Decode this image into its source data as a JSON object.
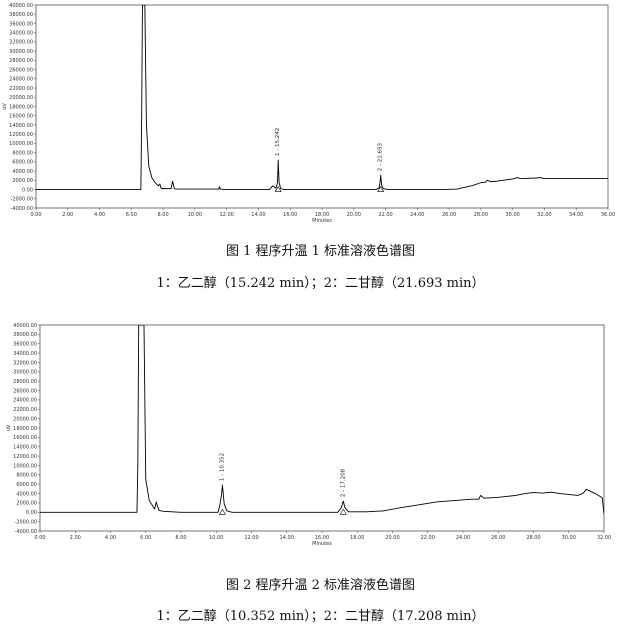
{
  "chart_data": [
    {
      "type": "line",
      "title": "图 1 程序升温 1 标准溶液色谱图",
      "legend_text": "1：乙二醇（15.242 min）；2：二甘醇（21.693 min）",
      "xlabel": "Minutes",
      "ylabel": "uV",
      "xlim": [
        0,
        36
      ],
      "ylim": [
        -4000,
        40000
      ],
      "xticks": [
        "0.00",
        "2.00",
        "4.00",
        "6.00",
        "8.00",
        "10.00",
        "12.00",
        "14.00",
        "16.00",
        "18.00",
        "20.00",
        "22.00",
        "24.00",
        "26.00",
        "28.00",
        "30.00",
        "32.00",
        "34.00",
        "36.00"
      ],
      "yticks": [
        "-4000.00",
        "-2000.00",
        "0.00",
        "2000.00",
        "4000.00",
        "6000.00",
        "8000.00",
        "10000.00",
        "12000.00",
        "14000.00",
        "16000.00",
        "18000.00",
        "20000.00",
        "22000.00",
        "24000.00",
        "26000.00",
        "28000.00",
        "30000.00",
        "32000.00",
        "34000.00",
        "36000.00",
        "38000.00",
        "40000.00"
      ],
      "series": [
        {
          "x": [
            0,
            6.6,
            6.65,
            6.7,
            6.75,
            6.85,
            6.95,
            7.1,
            7.3,
            7.5,
            7.7,
            7.8,
            7.85,
            7.9,
            8.0,
            8.5,
            8.6,
            8.65,
            8.7,
            8.8,
            9.5,
            11.5,
            11.55,
            11.6,
            12,
            14.7,
            14.9,
            15.1,
            15.2,
            15.242,
            15.3,
            15.4,
            15.6,
            16.5,
            18,
            20,
            21.4,
            21.6,
            21.65,
            21.693,
            21.75,
            21.85,
            22.2,
            24,
            25.5,
            26.5,
            27.5,
            28,
            28.3,
            28.4,
            28.6,
            29,
            30,
            30.3,
            30.45,
            30.7,
            31.5,
            31.8,
            31.9,
            32.2,
            34,
            36
          ],
          "y": [
            0,
            0,
            16000,
            40000,
            40000,
            40000,
            14000,
            5000,
            2500,
            1500,
            800,
            1200,
            500,
            200,
            200,
            200,
            1800,
            1000,
            200,
            100,
            100,
            100,
            600,
            100,
            0,
            0,
            800,
            300,
            1500,
            6400,
            1500,
            200,
            0,
            0,
            0,
            0,
            0,
            400,
            1500,
            3100,
            1000,
            200,
            0,
            0,
            0,
            100,
            900,
            1500,
            1600,
            2000,
            1700,
            1800,
            2300,
            2600,
            2400,
            2400,
            2500,
            2600,
            2400,
            2400,
            2400,
            2400
          ]
        }
      ],
      "peaks": [
        {
          "label": "1 - 15.242",
          "rt": 15.242,
          "y": 6400
        },
        {
          "label": "2 - 21.693",
          "rt": 21.693,
          "y": 3100
        }
      ]
    },
    {
      "type": "line",
      "title": "图 2 程序升温 2 标准溶液色谱图",
      "legend_text": "1：乙二醇（10.352 min）；2：二甘醇（17.208 min）",
      "xlabel": "Minutes",
      "ylabel": "uV",
      "xlim": [
        0,
        32
      ],
      "ylim": [
        -4000,
        40000
      ],
      "xticks": [
        "0.00",
        "2.00",
        "4.00",
        "6.00",
        "8.00",
        "10.00",
        "12.00",
        "14.00",
        "16.00",
        "18.00",
        "20.00",
        "22.00",
        "24.00",
        "26.00",
        "28.00",
        "30.00",
        "32.00"
      ],
      "yticks": [
        "-4000.00",
        "-2000.00",
        "0.00",
        "2000.00",
        "4000.00",
        "6000.00",
        "8000.00",
        "10000.00",
        "12000.00",
        "14000.00",
        "16000.00",
        "18000.00",
        "20000.00",
        "22000.00",
        "24000.00",
        "26000.00",
        "28000.00",
        "30000.00",
        "32000.00",
        "34000.00",
        "36000.00",
        "38000.00",
        "40000.00"
      ],
      "series": [
        {
          "x": [
            0,
            5.5,
            5.55,
            5.6,
            5.7,
            5.8,
            5.9,
            6.0,
            6.2,
            6.5,
            6.6,
            6.65,
            6.75,
            7.0,
            8,
            10.1,
            10.2,
            10.3,
            10.352,
            10.45,
            10.6,
            10.9,
            13,
            16.9,
            17.1,
            17.208,
            17.3,
            17.5,
            18.5,
            19.5,
            20.5,
            21.5,
            22.5,
            23.5,
            24.5,
            24.9,
            25.0,
            25.2,
            26,
            27,
            27.5,
            28,
            28.5,
            29,
            29.5,
            30,
            30.5,
            30.8,
            31,
            31.5,
            31.9,
            32
          ],
          "y": [
            0,
            0,
            10000,
            40000,
            40000,
            40000,
            40000,
            7000,
            2500,
            700,
            2200,
            1500,
            400,
            200,
            0,
            0,
            1400,
            3800,
            5800,
            1800,
            300,
            0,
            0,
            0,
            1000,
            2400,
            1000,
            100,
            100,
            300,
            1000,
            1600,
            2200,
            2500,
            2800,
            2800,
            3600,
            3000,
            3200,
            3600,
            4000,
            4200,
            4100,
            4300,
            4000,
            3800,
            3600,
            4000,
            4900,
            4000,
            3100,
            -400
          ]
        }
      ],
      "peaks": [
        {
          "label": "1 - 10.352",
          "rt": 10.352,
          "y": 5800
        },
        {
          "label": "2 - 17.208",
          "rt": 17.208,
          "y": 2400
        }
      ]
    }
  ]
}
